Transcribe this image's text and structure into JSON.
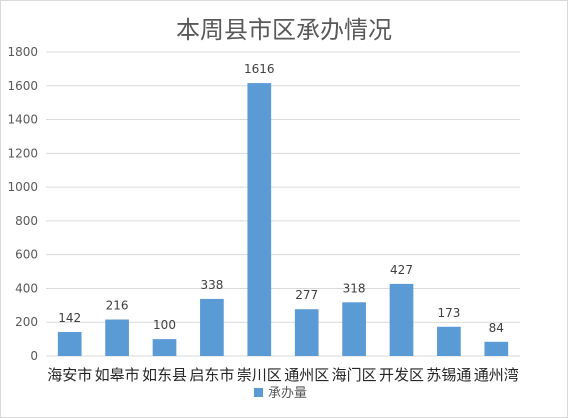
{
  "chart_data": {
    "type": "bar",
    "title": "本周县市区承办情况",
    "categories": [
      "海安市",
      "如皋市",
      "如东县",
      "启东市",
      "崇川区",
      "通州区",
      "海门区",
      "开发区",
      "苏锡通",
      "通州湾"
    ],
    "series": [
      {
        "name": "承办量",
        "values": [
          142,
          216,
          100,
          338,
          1616,
          277,
          318,
          427,
          173,
          84
        ]
      }
    ],
    "ylim": [
      0,
      1800
    ],
    "yticks": [
      0,
      200,
      400,
      600,
      800,
      1000,
      1200,
      1400,
      1600,
      1800
    ],
    "grid": true,
    "legend_position": "bottom",
    "data_labels": true,
    "bar_color": "#5b9bd5",
    "gridline_color": "#d9d9d9"
  }
}
